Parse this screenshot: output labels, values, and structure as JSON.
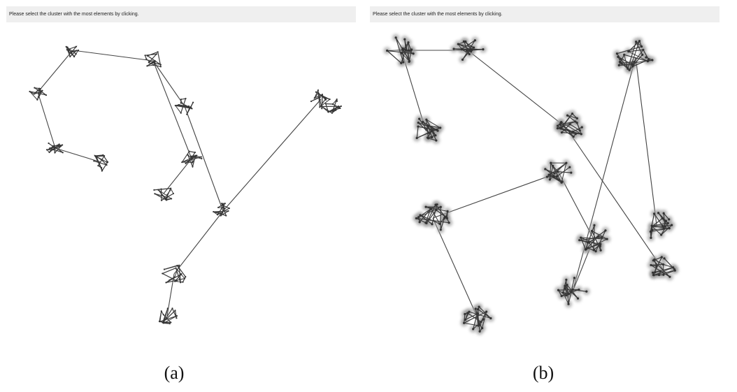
{
  "panels": [
    {
      "instruction": "Please select the cluster with the most elements by clicking.",
      "caption": "(a)",
      "style": "plain",
      "clusters": [
        {
          "seed": 11,
          "n": 14,
          "r": 12
        },
        {
          "seed": 23,
          "n": 14,
          "r": 16
        },
        {
          "seed": 31,
          "n": 14,
          "r": 13
        },
        {
          "seed": 47,
          "n": 14,
          "r": 14
        },
        {
          "seed": 53,
          "n": 14,
          "r": 14
        },
        {
          "seed": 61,
          "n": 14,
          "r": 13
        },
        {
          "seed": 71,
          "n": 14,
          "r": 15
        },
        {
          "seed": 83,
          "n": 14,
          "r": 15
        },
        {
          "seed": 97,
          "n": 14,
          "r": 16
        },
        {
          "seed": 101,
          "n": 14,
          "r": 14
        },
        {
          "seed": 109,
          "n": 16,
          "r": 18
        },
        {
          "seed": 113,
          "n": 14,
          "r": 15
        },
        {
          "seed": 127,
          "n": 14,
          "r": 15
        }
      ]
    },
    {
      "instruction": "Please select the cluster with the most elements by clicking.",
      "caption": "(b)",
      "style": "halo",
      "clusters": [
        {
          "seed": 131,
          "n": 16,
          "r": 22
        },
        {
          "seed": 137,
          "n": 16,
          "r": 22
        },
        {
          "seed": 139,
          "n": 22,
          "r": 28
        },
        {
          "seed": 149,
          "n": 18,
          "r": 22
        },
        {
          "seed": 151,
          "n": 20,
          "r": 25
        },
        {
          "seed": 157,
          "n": 16,
          "r": 22
        },
        {
          "seed": 163,
          "n": 22,
          "r": 25
        },
        {
          "seed": 167,
          "n": 18,
          "r": 22
        },
        {
          "seed": 173,
          "n": 18,
          "r": 22
        },
        {
          "seed": 179,
          "n": 18,
          "r": 22
        },
        {
          "seed": 181,
          "n": 16,
          "r": 22
        },
        {
          "seed": 191,
          "n": 18,
          "r": 22
        }
      ]
    }
  ]
}
